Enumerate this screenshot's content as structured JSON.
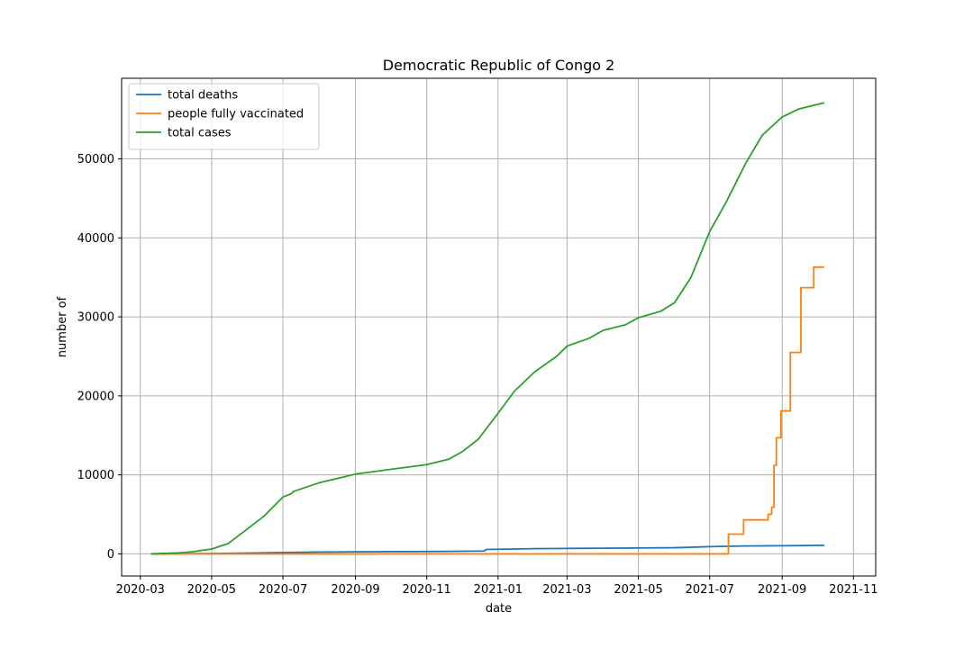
{
  "chart_data": {
    "type": "line",
    "title": "Democratic Republic of Congo 2",
    "xlabel": "date",
    "ylabel": "number of",
    "grid": true,
    "legend_position": "top-left",
    "xlim": [
      "2020-02-14",
      "2021-11-20"
    ],
    "ylim": [
      -2800,
      60200
    ],
    "x_ticks": [
      "2020-03",
      "2020-05",
      "2020-07",
      "2020-09",
      "2020-11",
      "2021-01",
      "2021-03",
      "2021-05",
      "2021-07",
      "2021-09",
      "2021-11"
    ],
    "y_ticks": [
      0,
      10000,
      20000,
      30000,
      40000,
      50000
    ],
    "series": [
      {
        "name": "total deaths",
        "color": "#1f77b4",
        "points": [
          [
            "2020-03-10",
            0
          ],
          [
            "2020-04-01",
            20
          ],
          [
            "2020-05-01",
            40
          ],
          [
            "2020-06-01",
            100
          ],
          [
            "2020-07-01",
            180
          ],
          [
            "2020-08-01",
            230
          ],
          [
            "2020-09-01",
            260
          ],
          [
            "2020-10-01",
            280
          ],
          [
            "2020-11-01",
            300
          ],
          [
            "2020-12-01",
            330
          ],
          [
            "2020-12-20",
            360
          ],
          [
            "2020-12-22",
            560
          ],
          [
            "2021-01-15",
            620
          ],
          [
            "2021-02-01",
            660
          ],
          [
            "2021-03-01",
            690
          ],
          [
            "2021-04-01",
            720
          ],
          [
            "2021-05-01",
            750
          ],
          [
            "2021-06-01",
            780
          ],
          [
            "2021-06-15",
            840
          ],
          [
            "2021-07-01",
            920
          ],
          [
            "2021-07-15",
            960
          ],
          [
            "2021-08-01",
            1000
          ],
          [
            "2021-09-01",
            1030
          ],
          [
            "2021-10-01",
            1070
          ],
          [
            "2021-10-07",
            1080
          ]
        ]
      },
      {
        "name": "people fully vaccinated",
        "color": "#ff7f0e",
        "points": [
          [
            "2020-03-10",
            0
          ],
          [
            "2021-07-17",
            0
          ],
          [
            "2021-07-17",
            2500
          ],
          [
            "2021-07-30",
            2500
          ],
          [
            "2021-07-30",
            4300
          ],
          [
            "2021-08-20",
            4300
          ],
          [
            "2021-08-20",
            5000
          ],
          [
            "2021-08-23",
            5000
          ],
          [
            "2021-08-23",
            5900
          ],
          [
            "2021-08-25",
            5900
          ],
          [
            "2021-08-25",
            11200
          ],
          [
            "2021-08-27",
            11200
          ],
          [
            "2021-08-27",
            14700
          ],
          [
            "2021-08-31",
            14700
          ],
          [
            "2021-08-31",
            18100
          ],
          [
            "2021-09-08",
            18100
          ],
          [
            "2021-09-08",
            25500
          ],
          [
            "2021-09-17",
            25500
          ],
          [
            "2021-09-17",
            33700
          ],
          [
            "2021-09-28",
            33700
          ],
          [
            "2021-09-28",
            36300
          ],
          [
            "2021-10-07",
            36300
          ]
        ]
      },
      {
        "name": "total cases",
        "color": "#2ca02c",
        "points": [
          [
            "2020-03-10",
            0
          ],
          [
            "2020-04-01",
            110
          ],
          [
            "2020-04-15",
            280
          ],
          [
            "2020-05-01",
            620
          ],
          [
            "2020-05-15",
            1300
          ],
          [
            "2020-06-01",
            3200
          ],
          [
            "2020-06-15",
            4800
          ],
          [
            "2020-07-01",
            7200
          ],
          [
            "2020-07-08",
            7600
          ],
          [
            "2020-07-10",
            7900
          ],
          [
            "2020-08-01",
            9000
          ],
          [
            "2020-09-01",
            10100
          ],
          [
            "2020-10-01",
            10700
          ],
          [
            "2020-11-01",
            11300
          ],
          [
            "2020-11-20",
            12000
          ],
          [
            "2020-12-01",
            12900
          ],
          [
            "2020-12-15",
            14500
          ],
          [
            "2021-01-01",
            17800
          ],
          [
            "2021-01-15",
            20600
          ],
          [
            "2021-02-01",
            23000
          ],
          [
            "2021-02-20",
            25000
          ],
          [
            "2021-03-01",
            26300
          ],
          [
            "2021-03-20",
            27300
          ],
          [
            "2021-04-01",
            28300
          ],
          [
            "2021-04-20",
            29000
          ],
          [
            "2021-05-01",
            29900
          ],
          [
            "2021-05-20",
            30700
          ],
          [
            "2021-06-01",
            31800
          ],
          [
            "2021-06-15",
            35000
          ],
          [
            "2021-07-01",
            40800
          ],
          [
            "2021-07-15",
            44500
          ],
          [
            "2021-08-01",
            49500
          ],
          [
            "2021-08-15",
            53000
          ],
          [
            "2021-09-01",
            55300
          ],
          [
            "2021-09-15",
            56300
          ],
          [
            "2021-10-01",
            56900
          ],
          [
            "2021-10-07",
            57100
          ]
        ]
      }
    ]
  }
}
